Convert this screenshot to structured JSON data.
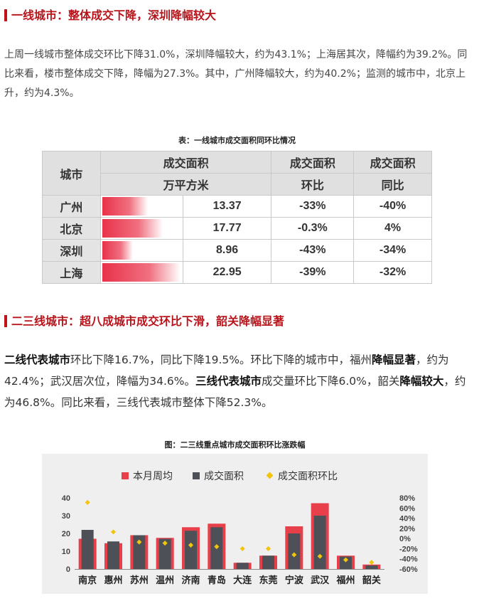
{
  "section1": {
    "title": "一线城市：整体成交下降，深圳降幅较大",
    "paragraph": "上周一线城市整体成交环比下降31.0%，深圳降幅较大，约为43.1%；上海居其次，降幅约为39.2%。同比来看，楼市整体成交下降，降幅为27.3%。其中，广州降幅较大，约为40.2%；监测的城市中，北京上升，约为4.3%。"
  },
  "table": {
    "caption": "表：一线城市成交面积同环比情况",
    "headers": {
      "city": "城市",
      "area": "成交面积",
      "area_unit": "万平方米",
      "mom": "成交面积",
      "mom_sub": "环比",
      "yoy": "成交面积",
      "yoy_sub": "同比"
    },
    "rows": [
      {
        "city": "广州",
        "area": "13.37",
        "bar": 13.37,
        "mom": "-33%",
        "yoy": "-40%"
      },
      {
        "city": "北京",
        "area": "17.77",
        "bar": 17.77,
        "mom": "-0.3%",
        "yoy": "4%"
      },
      {
        "city": "深圳",
        "area": "8.96",
        "bar": 8.96,
        "mom": "-43%",
        "yoy": "-34%"
      },
      {
        "city": "上海",
        "area": "22.95",
        "bar": 22.95,
        "mom": "-39%",
        "yoy": "-32%"
      }
    ]
  },
  "section2": {
    "title": "二三线城市：超八成城市成交环比下滑，韶关降幅显著",
    "p": {
      "s1": "二线代表城市",
      "s2": "环比下降16.7%，同比下降19.5%。环比下降的城市中，福州",
      "s3": "降幅显著",
      "s4": "，约为42.4%；武汉居次位，降幅为34.6%。",
      "s5": "三线代表城市",
      "s6": "成交量环比下降6.0%，韶关",
      "s7": "降幅较大",
      "s8": "，约为46.8%。同比来看，三线代表城市整体下降52.3%。"
    }
  },
  "chart_caption": "图：二三线重点城市成交面积环比涨跌幅",
  "chart_data": {
    "type": "bar",
    "categories": [
      "南京",
      "惠州",
      "苏州",
      "温州",
      "济南",
      "青岛",
      "大连",
      "东莞",
      "宁波",
      "武汉",
      "福州",
      "韶关"
    ],
    "series": [
      {
        "name": "本月周均",
        "type": "bar",
        "axis": "left",
        "color": "#e8404a",
        "values": [
          17,
          14.5,
          19,
          17.5,
          23.5,
          25.5,
          3.5,
          7.5,
          24,
          37,
          7.5,
          2.5
        ]
      },
      {
        "name": "成交面积",
        "type": "bar",
        "axis": "left",
        "color": "#4d5057",
        "values": [
          22,
          15.5,
          19,
          17,
          21.5,
          23.5,
          3.5,
          7.5,
          20,
          30,
          7,
          2
        ]
      },
      {
        "name": "成交面积环比",
        "type": "scatter",
        "axis": "right",
        "color": "#f2c40c",
        "values": [
          0.71,
          0.13,
          -0.07,
          -0.09,
          -0.13,
          -0.16,
          -0.2,
          -0.2,
          -0.32,
          -0.35,
          -0.42,
          -0.47
        ]
      }
    ],
    "yleft": {
      "ticks": [
        "0",
        "10",
        "20",
        "30",
        "40"
      ],
      "ylim": [
        0,
        40
      ]
    },
    "yright": {
      "ticks": [
        "80%",
        "60%",
        "40%",
        "20%",
        "0%",
        "-20%",
        "-40%",
        "-60%"
      ],
      "ylim": [
        -0.6,
        0.8
      ]
    },
    "legend_position": "top"
  }
}
